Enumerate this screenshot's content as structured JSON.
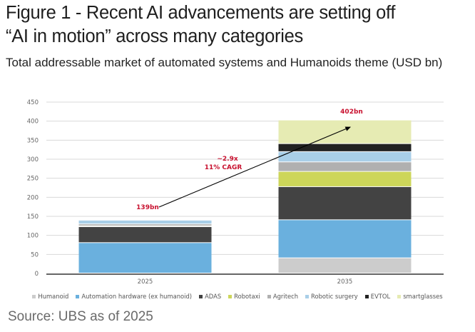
{
  "title_line1": "Figure 1 - Recent AI advancements are setting off",
  "title_line2": "“AI in motion” across many categories",
  "subtitle": "Total addressable market of automated systems and Humanoids theme (USD bn)",
  "source": "Source: UBS as of 2025",
  "chart_data": {
    "type": "bar",
    "stacked": true,
    "title": "Total addressable market of automated systems and Humanoids theme (USD bn)",
    "xlabel": "",
    "ylabel": "USD bn",
    "categories": [
      "2025",
      "2035"
    ],
    "ylim": [
      0,
      450
    ],
    "yticks": [
      0,
      50,
      100,
      150,
      200,
      250,
      300,
      350,
      400,
      450
    ],
    "grid": true,
    "legend_position": "bottom",
    "series": [
      {
        "name": "Humanoid",
        "color": "#cccccc",
        "values": [
          0,
          40
        ]
      },
      {
        "name": "Automation hardware (ex humanoid)",
        "color": "#6ab0de",
        "values": [
          80,
          100
        ]
      },
      {
        "name": "ADAS",
        "color": "#434343",
        "values": [
          42,
          87
        ]
      },
      {
        "name": "Robotaxi",
        "color": "#cdd65a",
        "values": [
          2,
          40
        ]
      },
      {
        "name": "Agritech",
        "color": "#b0b0b0",
        "values": [
          5,
          25
        ]
      },
      {
        "name": "Robotic surgery",
        "color": "#a9cfe8",
        "values": [
          10,
          27
        ]
      },
      {
        "name": "EVTOL",
        "color": "#222222",
        "values": [
          0,
          21
        ]
      },
      {
        "name": "smartglasses",
        "color": "#e6ebb3",
        "values": [
          0,
          62
        ]
      }
    ],
    "annotations": [
      {
        "text": "139bn",
        "category": "2025",
        "value": 139
      },
      {
        "text": "402bn",
        "category": "2035",
        "value": 402
      },
      {
        "text": "~2.9x",
        "note": "growth multiple"
      },
      {
        "text": "11% CAGR",
        "note": "growth rate"
      }
    ]
  }
}
